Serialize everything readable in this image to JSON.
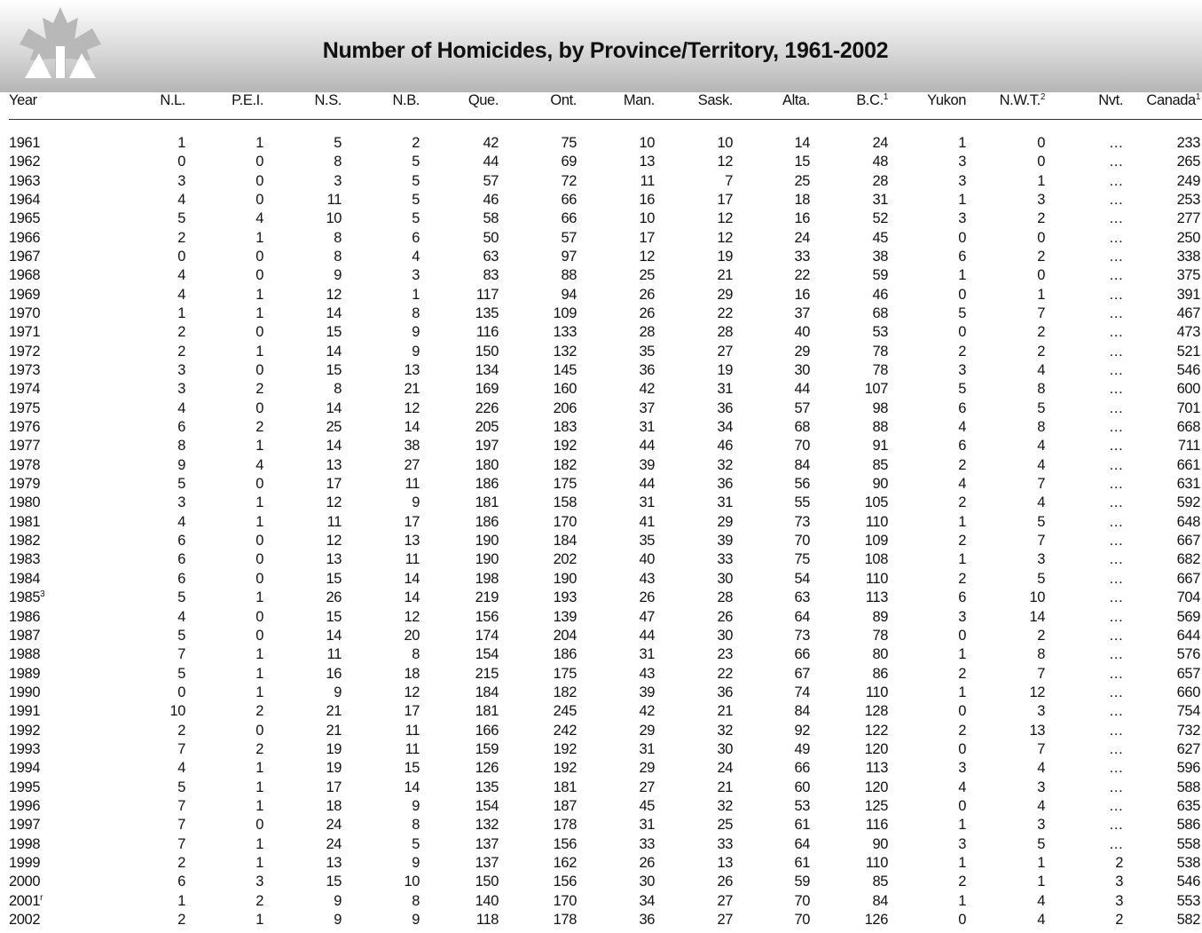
{
  "header": {
    "title": "Number of Homicides, by Province/Territory, 1961-2002"
  },
  "table": {
    "columns": [
      {
        "text": "Year"
      },
      {
        "text": "N.L."
      },
      {
        "text": "P.E.I."
      },
      {
        "text": "N.S."
      },
      {
        "text": "N.B."
      },
      {
        "text": "Que."
      },
      {
        "text": "Ont."
      },
      {
        "text": "Man."
      },
      {
        "text": "Sask."
      },
      {
        "text": "Alta."
      },
      {
        "text": "B.C.",
        "sup": "1"
      },
      {
        "text": "Yukon"
      },
      {
        "text": "N.W.T.",
        "sup": "2"
      },
      {
        "text": "Nvt."
      },
      {
        "text": "Canada",
        "sup": "1"
      }
    ],
    "rows": [
      [
        1961,
        1,
        1,
        5,
        2,
        42,
        75,
        10,
        10,
        14,
        24,
        1,
        0,
        "…",
        233
      ],
      [
        1962,
        0,
        0,
        8,
        5,
        44,
        69,
        13,
        12,
        15,
        48,
        3,
        0,
        "…",
        265
      ],
      [
        1963,
        3,
        0,
        3,
        5,
        57,
        72,
        11,
        7,
        25,
        28,
        3,
        1,
        "…",
        249
      ],
      [
        1964,
        4,
        0,
        11,
        5,
        46,
        66,
        16,
        17,
        18,
        31,
        1,
        3,
        "…",
        253
      ],
      [
        1965,
        5,
        4,
        10,
        5,
        58,
        66,
        10,
        12,
        16,
        52,
        3,
        2,
        "…",
        277
      ],
      [
        1966,
        2,
        1,
        8,
        6,
        50,
        57,
        17,
        12,
        24,
        45,
        0,
        0,
        "…",
        250
      ],
      [
        1967,
        0,
        0,
        8,
        4,
        63,
        97,
        12,
        19,
        33,
        38,
        6,
        2,
        "…",
        338
      ],
      [
        1968,
        4,
        0,
        9,
        3,
        83,
        88,
        25,
        21,
        22,
        59,
        1,
        0,
        "…",
        375
      ],
      [
        1969,
        4,
        1,
        12,
        1,
        117,
        94,
        26,
        29,
        16,
        46,
        0,
        1,
        "…",
        391
      ],
      [
        1970,
        1,
        1,
        14,
        8,
        135,
        109,
        26,
        22,
        37,
        68,
        5,
        7,
        "…",
        467
      ],
      [
        1971,
        2,
        0,
        15,
        9,
        116,
        133,
        28,
        28,
        40,
        53,
        0,
        2,
        "…",
        473
      ],
      [
        1972,
        2,
        1,
        14,
        9,
        150,
        132,
        35,
        27,
        29,
        78,
        2,
        2,
        "…",
        521
      ],
      [
        1973,
        3,
        0,
        15,
        13,
        134,
        145,
        36,
        19,
        30,
        78,
        3,
        4,
        "…",
        546
      ],
      [
        1974,
        3,
        2,
        8,
        21,
        169,
        160,
        42,
        31,
        44,
        107,
        5,
        8,
        "…",
        600
      ],
      [
        1975,
        4,
        0,
        14,
        12,
        226,
        206,
        37,
        36,
        57,
        98,
        6,
        5,
        "…",
        701
      ],
      [
        1976,
        6,
        2,
        25,
        14,
        205,
        183,
        31,
        34,
        68,
        88,
        4,
        8,
        "…",
        668
      ],
      [
        1977,
        8,
        1,
        14,
        38,
        197,
        192,
        44,
        46,
        70,
        91,
        6,
        4,
        "…",
        711
      ],
      [
        1978,
        9,
        4,
        13,
        27,
        180,
        182,
        39,
        32,
        84,
        85,
        2,
        4,
        "…",
        661
      ],
      [
        1979,
        5,
        0,
        17,
        11,
        186,
        175,
        44,
        36,
        56,
        90,
        4,
        7,
        "…",
        631
      ],
      [
        1980,
        3,
        1,
        12,
        9,
        181,
        158,
        31,
        31,
        55,
        105,
        2,
        4,
        "…",
        592
      ],
      [
        1981,
        4,
        1,
        11,
        17,
        186,
        170,
        41,
        29,
        73,
        110,
        1,
        5,
        "…",
        648
      ],
      [
        1982,
        6,
        0,
        12,
        13,
        190,
        184,
        35,
        39,
        70,
        109,
        2,
        7,
        "…",
        667
      ],
      [
        1983,
        6,
        0,
        13,
        11,
        190,
        202,
        40,
        33,
        75,
        108,
        1,
        3,
        "…",
        682
      ],
      [
        1984,
        6,
        0,
        15,
        14,
        198,
        190,
        43,
        30,
        54,
        110,
        2,
        5,
        "…",
        667
      ],
      [
        {
          "text": 1985,
          "sup": "3"
        },
        5,
        1,
        26,
        14,
        219,
        193,
        26,
        28,
        63,
        113,
        6,
        10,
        "…",
        704
      ],
      [
        1986,
        4,
        0,
        15,
        12,
        156,
        139,
        47,
        26,
        64,
        89,
        3,
        14,
        "…",
        569
      ],
      [
        1987,
        5,
        0,
        14,
        20,
        174,
        204,
        44,
        30,
        73,
        78,
        0,
        2,
        "…",
        644
      ],
      [
        1988,
        7,
        1,
        11,
        8,
        154,
        186,
        31,
        23,
        66,
        80,
        1,
        8,
        "…",
        576
      ],
      [
        1989,
        5,
        1,
        16,
        18,
        215,
        175,
        43,
        22,
        67,
        86,
        2,
        7,
        "…",
        657
      ],
      [
        1990,
        0,
        1,
        9,
        12,
        184,
        182,
        39,
        36,
        74,
        110,
        1,
        12,
        "…",
        660
      ],
      [
        1991,
        10,
        2,
        21,
        17,
        181,
        245,
        42,
        21,
        84,
        128,
        0,
        3,
        "…",
        754
      ],
      [
        1992,
        2,
        0,
        21,
        11,
        166,
        242,
        29,
        32,
        92,
        122,
        2,
        13,
        "…",
        732
      ],
      [
        1993,
        7,
        2,
        19,
        11,
        159,
        192,
        31,
        30,
        49,
        120,
        0,
        7,
        "…",
        627
      ],
      [
        1994,
        4,
        1,
        19,
        15,
        126,
        192,
        29,
        24,
        66,
        113,
        3,
        4,
        "…",
        596
      ],
      [
        1995,
        5,
        1,
        17,
        14,
        135,
        181,
        27,
        21,
        60,
        120,
        4,
        3,
        "…",
        588
      ],
      [
        1996,
        7,
        1,
        18,
        9,
        154,
        187,
        45,
        32,
        53,
        125,
        0,
        4,
        "…",
        635
      ],
      [
        1997,
        7,
        0,
        24,
        8,
        132,
        178,
        31,
        25,
        61,
        116,
        1,
        3,
        "…",
        586
      ],
      [
        1998,
        7,
        1,
        24,
        5,
        137,
        156,
        33,
        33,
        64,
        90,
        3,
        5,
        "…",
        558
      ],
      [
        1999,
        2,
        1,
        13,
        9,
        137,
        162,
        26,
        13,
        61,
        110,
        1,
        1,
        2,
        538
      ],
      [
        2000,
        6,
        3,
        15,
        10,
        150,
        156,
        30,
        26,
        59,
        85,
        2,
        1,
        3,
        546
      ],
      [
        {
          "text": 2001,
          "sup": "r"
        },
        1,
        2,
        9,
        8,
        140,
        170,
        34,
        27,
        70,
        84,
        1,
        4,
        3,
        553
      ],
      [
        2002,
        2,
        1,
        9,
        9,
        118,
        178,
        36,
        27,
        70,
        126,
        0,
        4,
        2,
        582
      ]
    ]
  }
}
